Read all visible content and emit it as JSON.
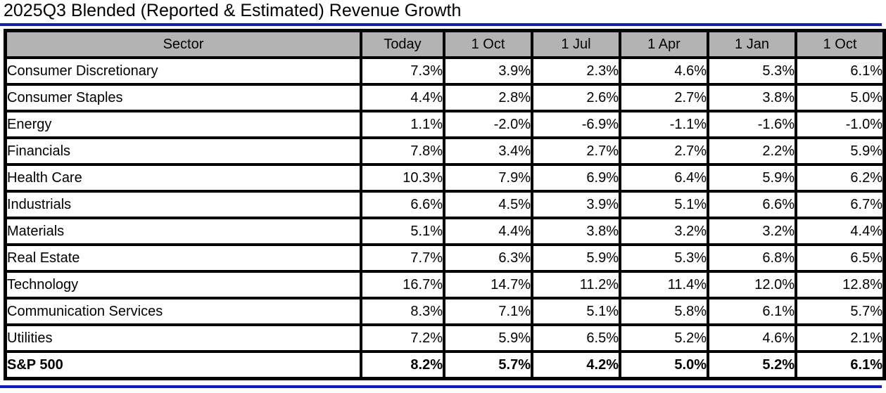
{
  "title": "2025Q3 Blended (Reported & Estimated) Revenue Growth",
  "colors": {
    "accent_blue": "#0d1dcb",
    "header_bg": "#b3b3b3",
    "border": "#000000",
    "text": "#000000",
    "background": "#ffffff"
  },
  "table": {
    "columns": [
      "Sector",
      "Today",
      "1 Oct",
      "1 Jul",
      "1 Apr",
      "1 Jan",
      "1 Oct"
    ],
    "rows": [
      {
        "sector": "Consumer Discretionary",
        "values": [
          "7.3%",
          "3.9%",
          "2.3%",
          "4.6%",
          "5.3%",
          "6.1%"
        ],
        "bold": false
      },
      {
        "sector": "Consumer Staples",
        "values": [
          "4.4%",
          "2.8%",
          "2.6%",
          "2.7%",
          "3.8%",
          "5.0%"
        ],
        "bold": false
      },
      {
        "sector": "Energy",
        "values": [
          "1.1%",
          "-2.0%",
          "-6.9%",
          "-1.1%",
          "-1.6%",
          "-1.0%"
        ],
        "bold": false
      },
      {
        "sector": "Financials",
        "values": [
          "7.8%",
          "3.4%",
          "2.7%",
          "2.7%",
          "2.2%",
          "5.9%"
        ],
        "bold": false
      },
      {
        "sector": "Health Care",
        "values": [
          "10.3%",
          "7.9%",
          "6.9%",
          "6.4%",
          "5.9%",
          "6.2%"
        ],
        "bold": false
      },
      {
        "sector": "Industrials",
        "values": [
          "6.6%",
          "4.5%",
          "3.9%",
          "5.1%",
          "6.6%",
          "6.7%"
        ],
        "bold": false
      },
      {
        "sector": "Materials",
        "values": [
          "5.1%",
          "4.4%",
          "3.8%",
          "3.2%",
          "3.2%",
          "4.4%"
        ],
        "bold": false
      },
      {
        "sector": "Real Estate",
        "values": [
          "7.7%",
          "6.3%",
          "5.9%",
          "5.3%",
          "6.8%",
          "6.5%"
        ],
        "bold": false
      },
      {
        "sector": "Technology",
        "values": [
          "16.7%",
          "14.7%",
          "11.2%",
          "11.4%",
          "12.0%",
          "12.8%"
        ],
        "bold": false
      },
      {
        "sector": "Communication Services",
        "values": [
          "8.3%",
          "7.1%",
          "5.1%",
          "5.8%",
          "6.1%",
          "5.7%"
        ],
        "bold": false
      },
      {
        "sector": "Utilities",
        "values": [
          "7.2%",
          "5.9%",
          "6.5%",
          "5.2%",
          "4.6%",
          "2.1%"
        ],
        "bold": false
      },
      {
        "sector": "S&P 500",
        "values": [
          "8.2%",
          "5.7%",
          "4.2%",
          "5.0%",
          "5.2%",
          "6.1%"
        ],
        "bold": true
      }
    ]
  },
  "chart_data": {
    "type": "table",
    "title": "2025Q3 Blended (Reported & Estimated) Revenue Growth",
    "units": "percent",
    "columns": [
      "Today",
      "1 Oct",
      "1 Jul",
      "1 Apr",
      "1 Jan",
      "1 Oct"
    ],
    "series": [
      {
        "name": "Consumer Discretionary",
        "values": [
          7.3,
          3.9,
          2.3,
          4.6,
          5.3,
          6.1
        ]
      },
      {
        "name": "Consumer Staples",
        "values": [
          4.4,
          2.8,
          2.6,
          2.7,
          3.8,
          5.0
        ]
      },
      {
        "name": "Energy",
        "values": [
          1.1,
          -2.0,
          -6.9,
          -1.1,
          -1.6,
          -1.0
        ]
      },
      {
        "name": "Financials",
        "values": [
          7.8,
          3.4,
          2.7,
          2.7,
          2.2,
          5.9
        ]
      },
      {
        "name": "Health Care",
        "values": [
          10.3,
          7.9,
          6.9,
          6.4,
          5.9,
          6.2
        ]
      },
      {
        "name": "Industrials",
        "values": [
          6.6,
          4.5,
          3.9,
          5.1,
          6.6,
          6.7
        ]
      },
      {
        "name": "Materials",
        "values": [
          5.1,
          4.4,
          3.8,
          3.2,
          3.2,
          4.4
        ]
      },
      {
        "name": "Real Estate",
        "values": [
          7.7,
          6.3,
          5.9,
          5.3,
          6.8,
          6.5
        ]
      },
      {
        "name": "Technology",
        "values": [
          16.7,
          14.7,
          11.2,
          11.4,
          12.0,
          12.8
        ]
      },
      {
        "name": "Communication Services",
        "values": [
          8.3,
          7.1,
          5.1,
          5.8,
          6.1,
          5.7
        ]
      },
      {
        "name": "Utilities",
        "values": [
          7.2,
          5.9,
          6.5,
          5.2,
          4.6,
          2.1
        ]
      },
      {
        "name": "S&P 500",
        "values": [
          8.2,
          5.7,
          4.2,
          5.0,
          5.2,
          6.1
        ]
      }
    ]
  }
}
